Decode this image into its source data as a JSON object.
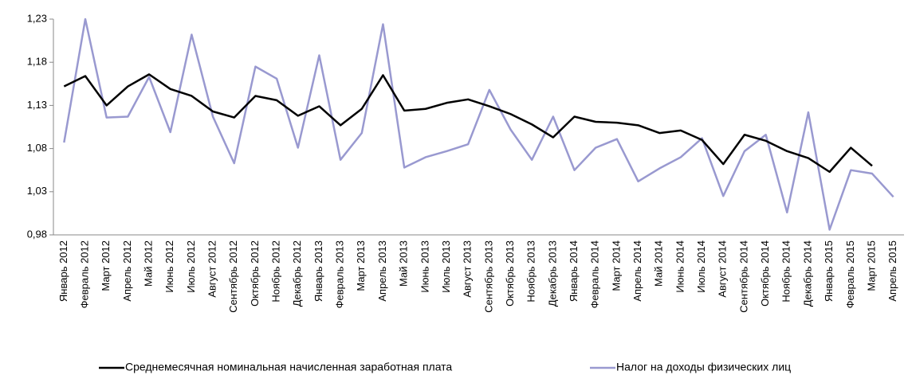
{
  "chart_data": {
    "type": "line",
    "categories": [
      "Январь 2012",
      "Февраль 2012",
      "Март 2012",
      "Апрель 2012",
      "Май 2012",
      "Июнь 2012",
      "Июль 2012",
      "Август 2012",
      "Сентябрь 2012",
      "Октябрь 2012",
      "Ноябрь 2012",
      "Декабрь 2012",
      "Январь 2013",
      "Февраль 2013",
      "Март 2013",
      "Апрель 2013",
      "Май 2013",
      "Июнь 2013",
      "Июль 2013",
      "Август 2013",
      "Сентябрь 2013",
      "Октябрь 2013",
      "Ноябрь 2013",
      "Декабрь 2013",
      "Январь 2014",
      "Февраль 2014",
      "Март 2014",
      "Апрель 2014",
      "Май 2014",
      "Июнь 2014",
      "Июль 2014",
      "Август 2014",
      "Сентябрь 2014",
      "Октябрь 2014",
      "Ноябрь 2014",
      "Декабрь 2014",
      "Январь 2015",
      "Февраль 2015",
      "Март 2015",
      "Апрель 2015"
    ],
    "series": [
      {
        "name": "Среднемесячная номинальная начисленная заработная плата",
        "color": "#000000",
        "values": [
          1.152,
          1.164,
          1.13,
          1.152,
          1.166,
          1.149,
          1.141,
          1.123,
          1.116,
          1.141,
          1.136,
          1.118,
          1.129,
          1.107,
          1.126,
          1.165,
          1.124,
          1.126,
          1.133,
          1.137,
          1.129,
          1.12,
          1.108,
          1.093,
          1.117,
          1.111,
          1.11,
          1.107,
          1.098,
          1.101,
          1.09,
          1.062,
          1.096,
          1.089,
          1.077,
          1.069,
          1.053,
          1.081,
          1.06,
          null
        ]
      },
      {
        "name": "Налог на доходы физических лиц",
        "color": "#9999d0",
        "values": [
          1.087,
          1.23,
          1.116,
          1.117,
          1.163,
          1.099,
          1.212,
          1.117,
          1.063,
          1.175,
          1.161,
          1.081,
          1.188,
          1.067,
          1.098,
          1.224,
          1.058,
          1.07,
          1.077,
          1.085,
          1.148,
          1.102,
          1.067,
          1.117,
          1.055,
          1.081,
          1.091,
          1.042,
          1.057,
          1.07,
          1.092,
          1.025,
          1.077,
          1.096,
          1.006,
          1.122,
          0.986,
          1.055,
          1.051,
          1.024
        ]
      }
    ],
    "ylim": [
      0.98,
      1.23
    ],
    "yticks": [
      {
        "value": 0.98,
        "label": "0,98"
      },
      {
        "value": 1.03,
        "label": "1,03"
      },
      {
        "value": 1.08,
        "label": "1,08"
      },
      {
        "value": 1.13,
        "label": "1,13"
      },
      {
        "value": 1.18,
        "label": "1,18"
      },
      {
        "value": 1.23,
        "label": "1,23"
      }
    ],
    "grid": false,
    "legend": "bottom"
  }
}
